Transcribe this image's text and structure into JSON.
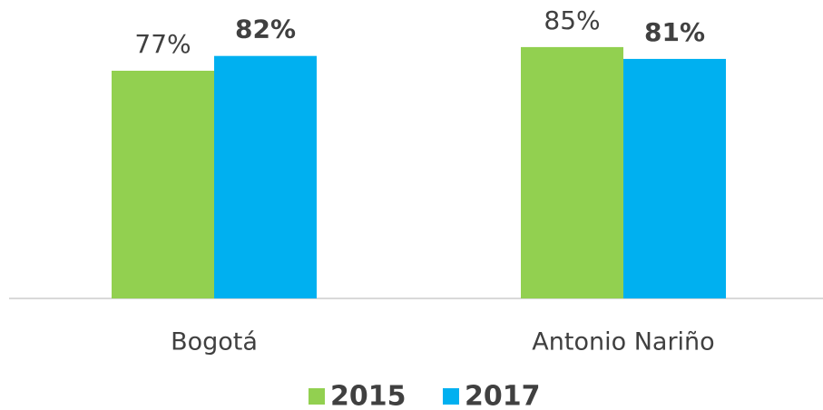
{
  "chart_data": {
    "type": "bar",
    "categories": [
      "Bogotá",
      "Antonio Nariño"
    ],
    "series": [
      {
        "name": "2015",
        "color": "#92d050",
        "values": [
          77,
          85
        ],
        "value_labels": [
          "77%",
          "85%"
        ]
      },
      {
        "name": "2017",
        "color": "#00b0f0",
        "values": [
          82,
          81
        ],
        "value_labels": [
          "82%",
          "81%"
        ]
      }
    ],
    "ylim": [
      0,
      100
    ],
    "legend": "bottom"
  }
}
